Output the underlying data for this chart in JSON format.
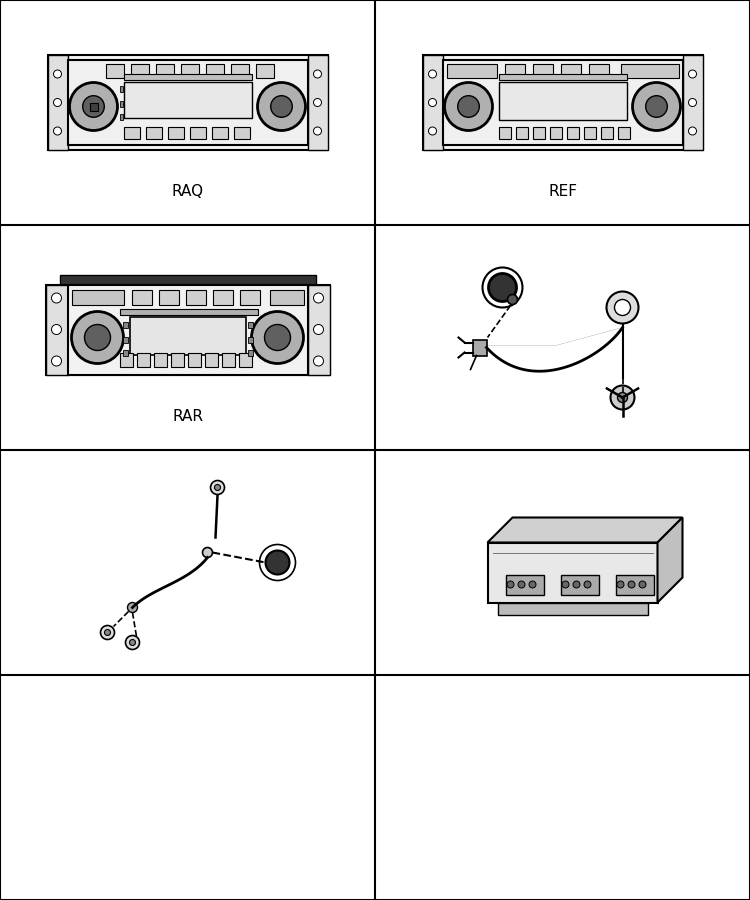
{
  "figure_width": 7.5,
  "figure_height": 9.0,
  "dpi": 100,
  "bg_color": "#ffffff",
  "border_color": "#000000",
  "grid_cols": 2,
  "grid_rows": 4,
  "grid_linewidth": 1.5,
  "cells": [
    {
      "row": 0,
      "col": 0,
      "label": "RAQ",
      "type": "radio_raq"
    },
    {
      "row": 0,
      "col": 1,
      "label": "REF",
      "type": "radio_ref"
    },
    {
      "row": 1,
      "col": 0,
      "label": "RAR",
      "type": "radio_rar"
    },
    {
      "row": 1,
      "col": 1,
      "label": "",
      "type": "wire_cable"
    },
    {
      "row": 2,
      "col": 0,
      "label": "",
      "type": "wire_harness"
    },
    {
      "row": 2,
      "col": 1,
      "label": "",
      "type": "module_box"
    },
    {
      "row": 3,
      "col": 0,
      "label": "",
      "type": "empty"
    },
    {
      "row": 3,
      "col": 1,
      "label": "",
      "type": "empty"
    }
  ],
  "label_fontsize": 11,
  "label_color": "#000000"
}
